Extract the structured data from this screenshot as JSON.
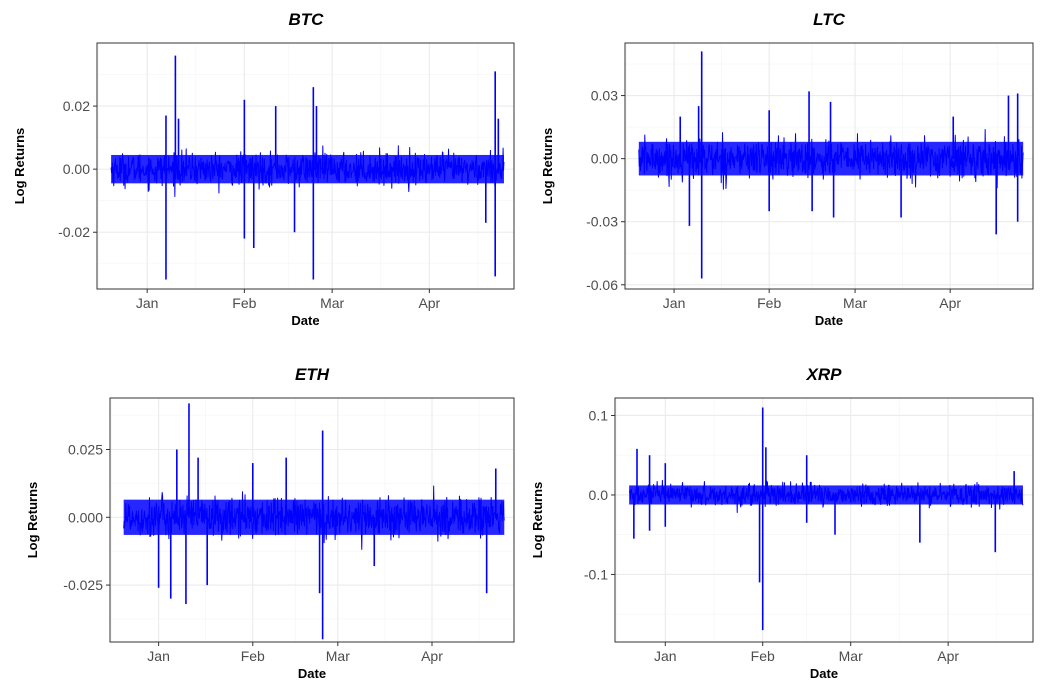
{
  "colors": {
    "series": "#0000ff"
  },
  "chart_data": [
    {
      "type": "line",
      "title": "BTC",
      "xlabel": "Date",
      "ylabel": "Log Returns",
      "x_range": [
        "2018-12-16",
        "2019-04-28"
      ],
      "x_ticks": [
        {
          "date": "2019-01-01",
          "label": "Jan"
        },
        {
          "date": "2019-02-01",
          "label": "Feb"
        },
        {
          "date": "2019-03-01",
          "label": "Mar"
        },
        {
          "date": "2019-04-01",
          "label": "Apr"
        }
      ],
      "ylim": [
        -0.038,
        0.04
      ],
      "y_ticks": [
        {
          "value": -0.02,
          "label": "-0.02"
        },
        {
          "value": 0.0,
          "label": "0.00"
        },
        {
          "value": 0.02,
          "label": "0.02"
        }
      ],
      "series": [
        {
          "band": 0.0045,
          "spikes": [
            {
              "date": "2019-01-10",
              "value": 0.036
            },
            {
              "date": "2019-01-07",
              "value": -0.035
            },
            {
              "date": "2019-01-07",
              "value": 0.017
            },
            {
              "date": "2019-01-11",
              "value": 0.016
            },
            {
              "date": "2019-02-01",
              "value": 0.022
            },
            {
              "date": "2019-02-01",
              "value": -0.022
            },
            {
              "date": "2019-02-04",
              "value": -0.025
            },
            {
              "date": "2019-02-11",
              "value": 0.02
            },
            {
              "date": "2019-02-17",
              "value": -0.02
            },
            {
              "date": "2019-02-23",
              "value": 0.026
            },
            {
              "date": "2019-02-23",
              "value": -0.035
            },
            {
              "date": "2019-02-24",
              "value": 0.02
            },
            {
              "date": "2019-04-22",
              "value": 0.031
            },
            {
              "date": "2019-04-22",
              "value": -0.034
            },
            {
              "date": "2019-04-23",
              "value": 0.016
            },
            {
              "date": "2019-04-19",
              "value": -0.017
            }
          ]
        }
      ]
    },
    {
      "type": "line",
      "title": "LTC",
      "xlabel": "Date",
      "ylabel": "Log Returns",
      "x_range": [
        "2018-12-16",
        "2019-04-28"
      ],
      "x_ticks": [
        {
          "date": "2019-01-01",
          "label": "Jan"
        },
        {
          "date": "2019-02-01",
          "label": "Feb"
        },
        {
          "date": "2019-03-01",
          "label": "Mar"
        },
        {
          "date": "2019-04-01",
          "label": "Apr"
        }
      ],
      "ylim": [
        -0.062,
        0.055
      ],
      "y_ticks": [
        {
          "value": -0.06,
          "label": "-0.06"
        },
        {
          "value": -0.03,
          "label": "-0.03"
        },
        {
          "value": 0.0,
          "label": "0.00"
        },
        {
          "value": 0.03,
          "label": "0.03"
        }
      ],
      "series": [
        {
          "band": 0.008,
          "spikes": [
            {
              "date": "2019-01-10",
              "value": 0.051
            },
            {
              "date": "2019-01-10",
              "value": -0.057
            },
            {
              "date": "2019-01-09",
              "value": 0.025
            },
            {
              "date": "2019-01-06",
              "value": -0.032
            },
            {
              "date": "2019-01-03",
              "value": 0.02
            },
            {
              "date": "2019-02-01",
              "value": 0.023
            },
            {
              "date": "2019-02-01",
              "value": -0.025
            },
            {
              "date": "2019-02-14",
              "value": 0.032
            },
            {
              "date": "2019-02-15",
              "value": -0.025
            },
            {
              "date": "2019-02-21",
              "value": 0.027
            },
            {
              "date": "2019-02-22",
              "value": -0.028
            },
            {
              "date": "2019-03-16",
              "value": -0.028
            },
            {
              "date": "2019-04-02",
              "value": 0.02
            },
            {
              "date": "2019-04-16",
              "value": -0.036
            },
            {
              "date": "2019-04-20",
              "value": 0.03
            },
            {
              "date": "2019-04-23",
              "value": 0.031
            },
            {
              "date": "2019-04-23",
              "value": -0.03
            }
          ]
        }
      ]
    },
    {
      "type": "line",
      "title": "ETH",
      "xlabel": "Date",
      "ylabel": "Log Returns",
      "x_range": [
        "2018-12-16",
        "2019-04-28"
      ],
      "x_ticks": [
        {
          "date": "2019-01-01",
          "label": "Jan"
        },
        {
          "date": "2019-02-01",
          "label": "Feb"
        },
        {
          "date": "2019-03-01",
          "label": "Mar"
        },
        {
          "date": "2019-04-01",
          "label": "Apr"
        }
      ],
      "ylim": [
        -0.046,
        0.044
      ],
      "y_ticks": [
        {
          "value": -0.025,
          "label": "-0.025"
        },
        {
          "value": 0.0,
          "label": "0.000"
        },
        {
          "value": 0.025,
          "label": "0.025"
        }
      ],
      "series": [
        {
          "band": 0.0065,
          "spikes": [
            {
              "date": "2019-01-11",
              "value": 0.042
            },
            {
              "date": "2019-01-10",
              "value": -0.032
            },
            {
              "date": "2019-01-07",
              "value": 0.025
            },
            {
              "date": "2019-01-05",
              "value": -0.03
            },
            {
              "date": "2019-01-01",
              "value": -0.026
            },
            {
              "date": "2019-01-14",
              "value": 0.022
            },
            {
              "date": "2019-01-17",
              "value": -0.025
            },
            {
              "date": "2019-02-01",
              "value": 0.02
            },
            {
              "date": "2019-02-12",
              "value": 0.022
            },
            {
              "date": "2019-02-24",
              "value": 0.032
            },
            {
              "date": "2019-02-24",
              "value": -0.045
            },
            {
              "date": "2019-02-23",
              "value": -0.028
            },
            {
              "date": "2019-03-13",
              "value": -0.018
            },
            {
              "date": "2019-04-19",
              "value": -0.028
            },
            {
              "date": "2019-04-22",
              "value": 0.018
            }
          ]
        }
      ]
    },
    {
      "type": "line",
      "title": "XRP",
      "xlabel": "Date",
      "ylabel": "Log Returns",
      "x_range": [
        "2018-12-16",
        "2019-04-28"
      ],
      "x_ticks": [
        {
          "date": "2019-01-01",
          "label": "Jan"
        },
        {
          "date": "2019-02-01",
          "label": "Feb"
        },
        {
          "date": "2019-03-01",
          "label": "Mar"
        },
        {
          "date": "2019-04-01",
          "label": "Apr"
        }
      ],
      "ylim": [
        -0.185,
        0.122
      ],
      "y_ticks": [
        {
          "value": -0.1,
          "label": "-0.1"
        },
        {
          "value": 0.0,
          "label": "0.0"
        },
        {
          "value": 0.1,
          "label": "0.1"
        }
      ],
      "series": [
        {
          "band": 0.012,
          "spikes": [
            {
              "date": "2018-12-23",
              "value": 0.058
            },
            {
              "date": "2018-12-22",
              "value": -0.055
            },
            {
              "date": "2018-12-27",
              "value": 0.05
            },
            {
              "date": "2018-12-27",
              "value": -0.045
            },
            {
              "date": "2019-01-01",
              "value": 0.04
            },
            {
              "date": "2019-01-01",
              "value": -0.04
            },
            {
              "date": "2019-01-31",
              "value": -0.11
            },
            {
              "date": "2019-02-01",
              "value": 0.11
            },
            {
              "date": "2019-02-01",
              "value": -0.17
            },
            {
              "date": "2019-02-02",
              "value": 0.06
            },
            {
              "date": "2019-02-15",
              "value": 0.05
            },
            {
              "date": "2019-02-15",
              "value": -0.035
            },
            {
              "date": "2019-02-24",
              "value": -0.05
            },
            {
              "date": "2019-03-23",
              "value": -0.06
            },
            {
              "date": "2019-04-16",
              "value": -0.072
            },
            {
              "date": "2019-04-22",
              "value": 0.03
            }
          ]
        }
      ]
    }
  ]
}
